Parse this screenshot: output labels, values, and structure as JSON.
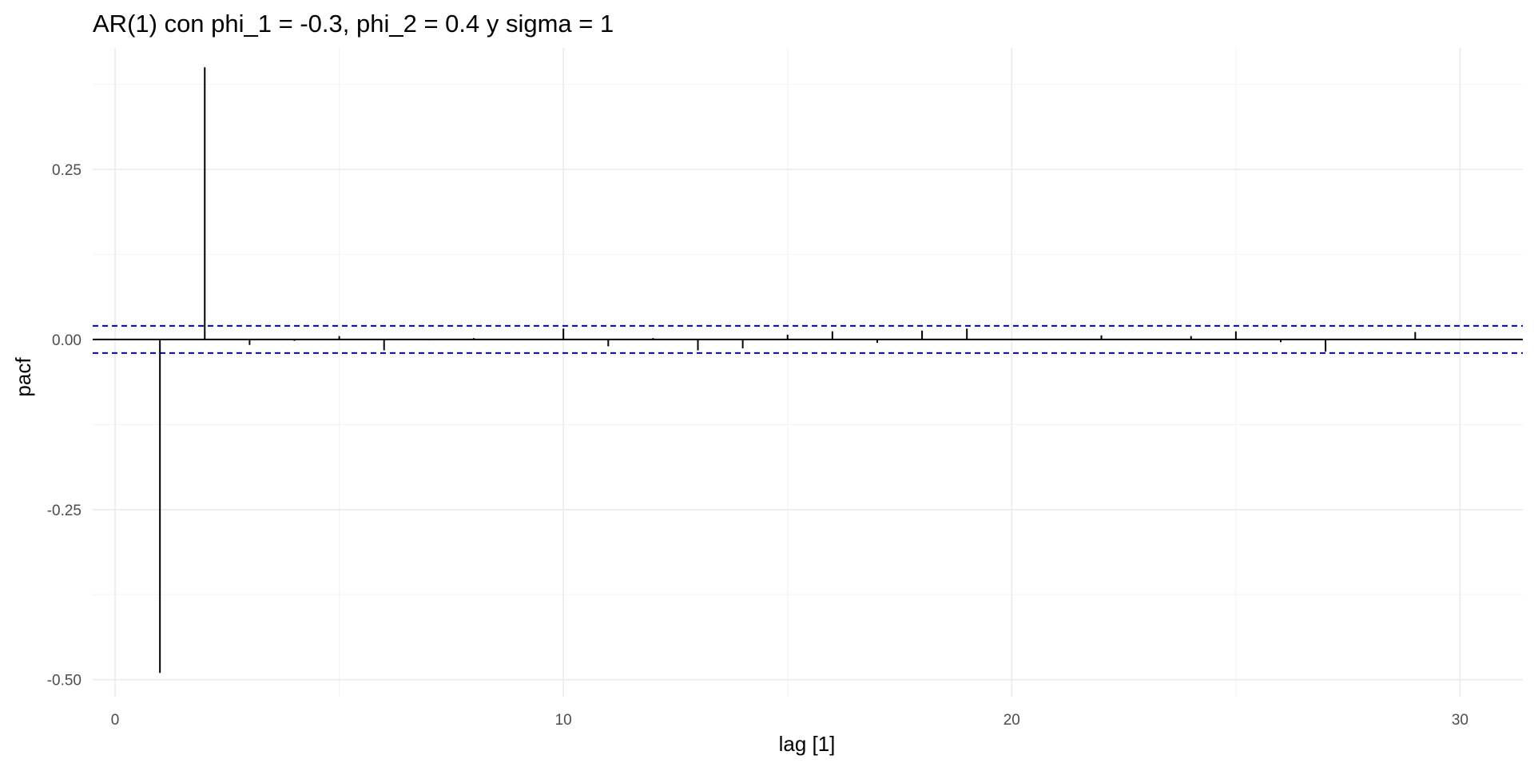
{
  "chart_data": {
    "type": "bar",
    "title": "AR(1) con phi_1 = -0.3, phi_2 = 0.4 y sigma = 1",
    "xlabel": "lag [1]",
    "ylabel": "pacf",
    "x": [
      1,
      2,
      3,
      4,
      5,
      6,
      7,
      8,
      9,
      10,
      11,
      12,
      13,
      14,
      15,
      16,
      17,
      18,
      19,
      20,
      21,
      22,
      23,
      24,
      25,
      26,
      27,
      28,
      29,
      30
    ],
    "values": [
      -0.49,
      0.4,
      -0.008,
      -0.002,
      0.005,
      -0.016,
      -0.001,
      0.002,
      0.0,
      0.016,
      -0.01,
      0.002,
      -0.016,
      -0.013,
      0.007,
      0.012,
      -0.005,
      0.013,
      0.016,
      0.001,
      0.0,
      0.006,
      0.0,
      0.005,
      0.012,
      -0.004,
      -0.018,
      0.0,
      0.011,
      -0.001
    ],
    "xlim": [
      -0.5,
      31.4
    ],
    "ylim": [
      -0.525,
      0.405
    ],
    "x_ticks": [
      0,
      10,
      20,
      30
    ],
    "x_tick_labels": [
      "0",
      "10",
      "20",
      "30"
    ],
    "x_minor_ticks": [
      5,
      15,
      25
    ],
    "y_ticks": [
      0.25,
      0.0,
      -0.25,
      -0.5
    ],
    "y_tick_labels": [
      "0.25",
      "0.00",
      "-0.25",
      "-0.50"
    ],
    "y_minor_ticks": [
      0.375,
      0.125,
      -0.125,
      -0.375
    ],
    "confidence_bounds": [
      0.02,
      -0.02
    ],
    "grid": true,
    "colors": {
      "bars": "#000000",
      "zero_line": "#000000",
      "confidence": "#0000cc",
      "grid_major": "#ebebeb",
      "grid_minor": "#f4f4f4"
    }
  }
}
